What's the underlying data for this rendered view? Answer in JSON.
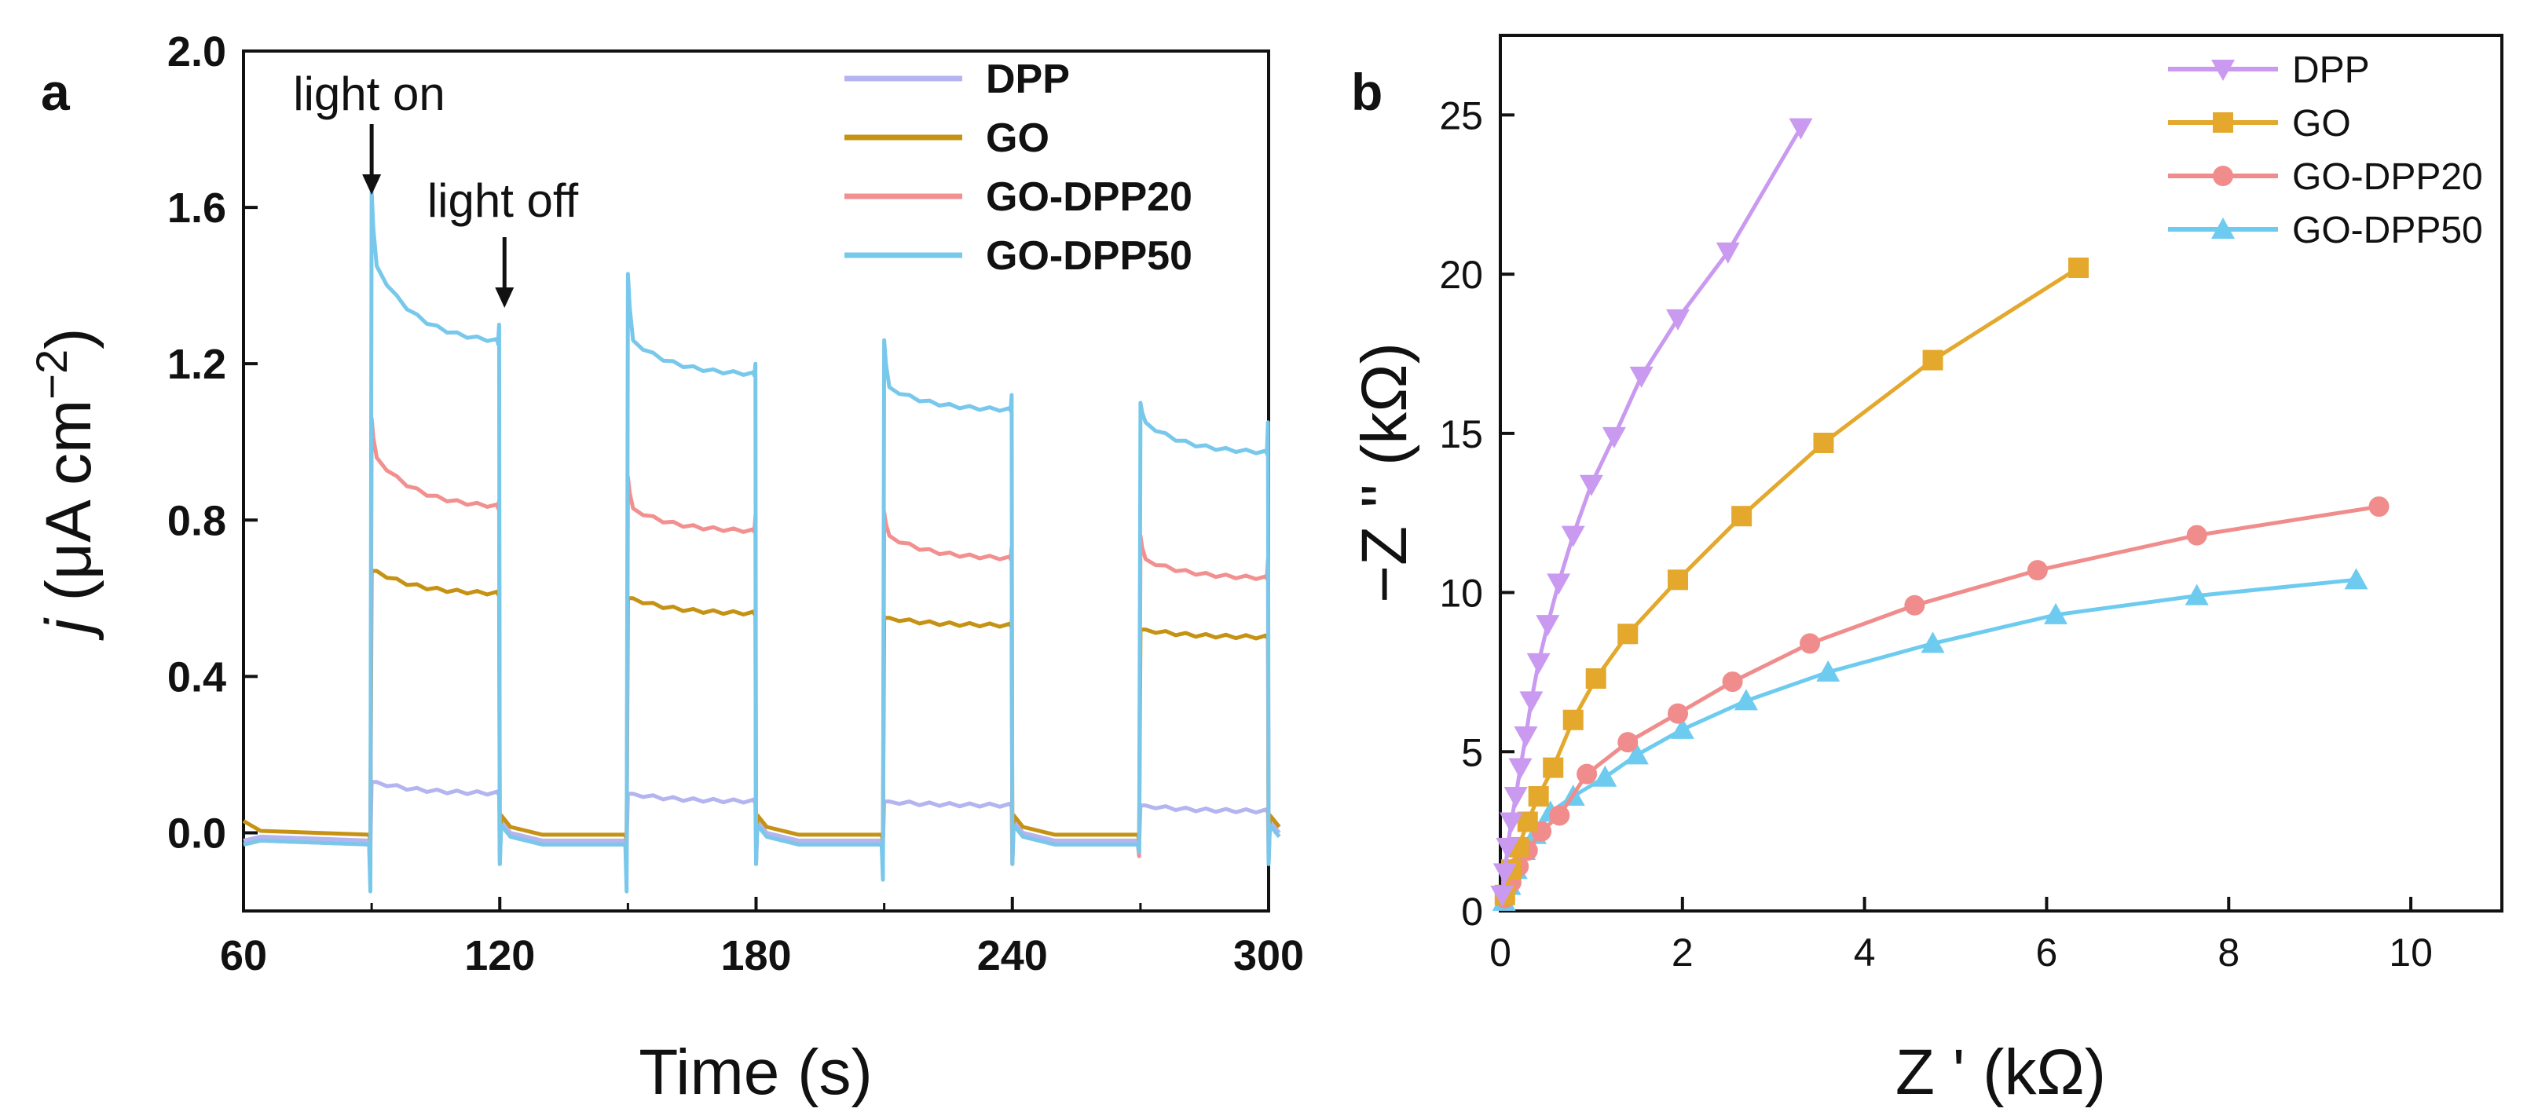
{
  "chart_data": [
    {
      "panel": "a",
      "type": "line",
      "xlabel": "Time (s)",
      "ylabel_italic": "j",
      "ylabel_rest": " (μA cm",
      "ylabel_sup": "−2",
      "ylabel_close": ")",
      "xlim": [
        60,
        300
      ],
      "ylim": [
        -0.2,
        2.0
      ],
      "xticks": [
        60,
        120,
        180,
        240,
        300
      ],
      "xtick_labels": [
        "60",
        "120",
        "180",
        "240",
        "300"
      ],
      "yticks": [
        0.0,
        0.4,
        0.8,
        1.2,
        1.6,
        2.0
      ],
      "ytick_labels": [
        "0.0",
        "0.4",
        "0.8",
        "1.2",
        "1.6",
        "2.0"
      ],
      "legend_position": "top-right",
      "annotations": [
        {
          "text": "light on",
          "x": 90,
          "y": 1.66
        },
        {
          "text": "light off",
          "x": 120,
          "y": 1.34
        }
      ],
      "light_periods": [
        [
          90,
          120
        ],
        [
          150,
          180
        ],
        [
          210,
          240
        ],
        [
          270,
          300
        ]
      ],
      "series": [
        {
          "name": "DPP",
          "color": "#b4b4f0",
          "dark": -0.02,
          "on_start": [
            0.13,
            0.1,
            0.08,
            0.07
          ],
          "on_end": [
            0.1,
            0.08,
            0.07,
            0.055
          ],
          "spike_on": [
            0.13,
            0.1,
            0.08,
            0.07
          ],
          "spike_off": [
            0.1,
            0.08,
            0.07,
            0.06
          ],
          "dip": [
            -0.03,
            -0.03,
            -0.03,
            -0.03
          ]
        },
        {
          "name": "GO",
          "color": "#c69214",
          "dark": -0.005,
          "start": 0.03,
          "on_start": [
            0.67,
            0.6,
            0.55,
            0.52
          ],
          "on_end": [
            0.61,
            0.56,
            0.53,
            0.5
          ],
          "spike_on": [
            0.67,
            0.6,
            0.55,
            0.52
          ],
          "spike_off": [
            0.62,
            0.57,
            0.54,
            0.5
          ],
          "dip": [
            -0.02,
            -0.02,
            -0.02,
            -0.02
          ]
        },
        {
          "name": "GO-DPP20",
          "color": "#f29090",
          "dark": -0.03,
          "on_start": [
            0.96,
            0.83,
            0.76,
            0.7
          ],
          "on_end": [
            0.83,
            0.77,
            0.7,
            0.65
          ],
          "spike_on": [
            1.06,
            0.91,
            0.82,
            0.76
          ],
          "spike_off": [
            0.85,
            0.81,
            0.73,
            0.7
          ],
          "dip": [
            -0.12,
            -0.08,
            -0.07,
            -0.06
          ]
        },
        {
          "name": "GO-DPP50",
          "color": "#78c8ec",
          "dark": -0.03,
          "on_start": [
            1.45,
            1.26,
            1.14,
            1.05
          ],
          "on_end": [
            1.25,
            1.17,
            1.08,
            0.97
          ],
          "spike_on": [
            1.64,
            1.43,
            1.26,
            1.1
          ],
          "spike_off": [
            1.3,
            1.2,
            1.12,
            1.05
          ],
          "dip": [
            -0.15,
            -0.15,
            -0.12,
            -0.05
          ]
        }
      ]
    },
    {
      "panel": "b",
      "type": "line",
      "xlabel": "Z ' (kΩ)",
      "ylabel": "−Z '' (kΩ)",
      "xlim": [
        0,
        11
      ],
      "ylim": [
        0,
        27.5
      ],
      "xticks": [
        0,
        2,
        4,
        6,
        8,
        10
      ],
      "xtick_labels": [
        "0",
        "2",
        "4",
        "6",
        "8",
        "10"
      ],
      "yticks": [
        0,
        5,
        10,
        15,
        20,
        25
      ],
      "ytick_labels": [
        "0",
        "5",
        "10",
        "15",
        "20",
        "25"
      ],
      "legend_position": "top-right",
      "series": [
        {
          "name": "DPP",
          "color": "#c99af0",
          "marker": "triangle-down",
          "x": [
            0.02,
            0.05,
            0.08,
            0.12,
            0.17,
            0.22,
            0.28,
            0.34,
            0.42,
            0.52,
            0.64,
            0.8,
            1.0,
            1.25,
            1.55,
            1.95,
            2.5,
            3.3
          ],
          "y": [
            0.5,
            1.2,
            2.0,
            2.8,
            3.6,
            4.5,
            5.5,
            6.6,
            7.8,
            9.0,
            10.3,
            11.8,
            13.4,
            14.9,
            16.8,
            18.6,
            20.7,
            24.6
          ]
        },
        {
          "name": "GO",
          "color": "#e3a82c",
          "marker": "square",
          "x": [
            0.05,
            0.12,
            0.2,
            0.3,
            0.42,
            0.58,
            0.8,
            1.05,
            1.4,
            1.95,
            2.65,
            3.55,
            4.75,
            6.35
          ],
          "y": [
            0.5,
            1.3,
            2.0,
            2.8,
            3.6,
            4.5,
            6.0,
            7.3,
            8.7,
            10.4,
            12.4,
            14.7,
            17.3,
            20.2
          ]
        },
        {
          "name": "GO-DPP20",
          "color": "#f08c8c",
          "marker": "circle",
          "x": [
            0.05,
            0.12,
            0.2,
            0.3,
            0.45,
            0.65,
            0.95,
            1.4,
            1.95,
            2.55,
            3.4,
            4.55,
            5.9,
            7.65,
            9.65
          ],
          "y": [
            0.4,
            0.9,
            1.4,
            1.9,
            2.5,
            3.0,
            4.3,
            5.3,
            6.2,
            7.2,
            8.4,
            9.6,
            10.7,
            11.8,
            12.7
          ]
        },
        {
          "name": "GO-DPP50",
          "color": "#6ecbf0",
          "marker": "triangle-up",
          "x": [
            0.04,
            0.1,
            0.17,
            0.26,
            0.38,
            0.55,
            0.8,
            1.15,
            1.5,
            2.0,
            2.7,
            3.6,
            4.75,
            6.1,
            7.65,
            9.4
          ],
          "y": [
            0.3,
            0.8,
            1.3,
            1.9,
            2.4,
            3.1,
            3.6,
            4.2,
            4.9,
            5.7,
            6.6,
            7.5,
            8.4,
            9.3,
            9.9,
            10.4
          ]
        }
      ]
    }
  ]
}
